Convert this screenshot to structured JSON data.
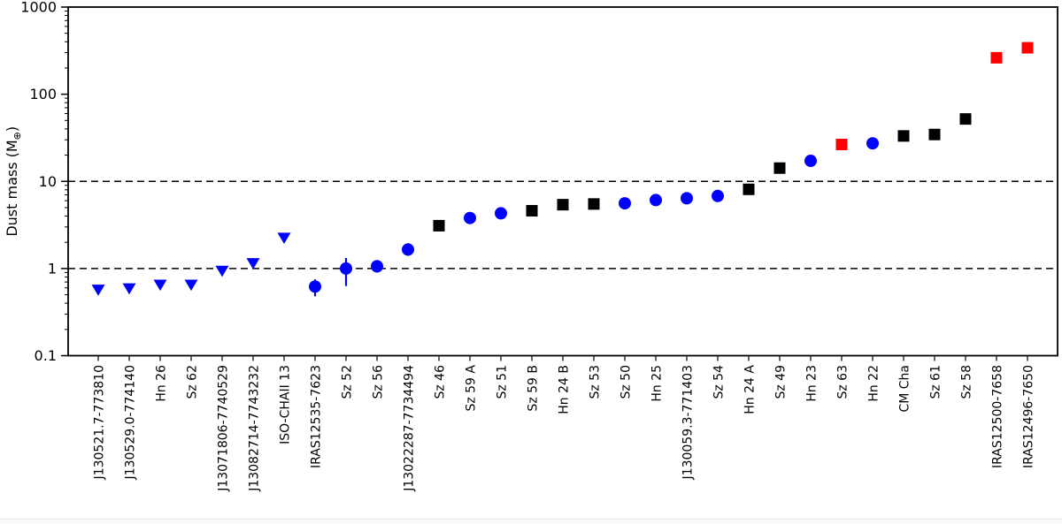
{
  "chart_data": {
    "type": "scatter",
    "title": "",
    "xlabel": "",
    "ylabel": {
      "prefix": "Dust mass (M",
      "subscript": "⊕",
      "suffix": ")"
    },
    "yscale": "log",
    "ylim": [
      0.1,
      1000
    ],
    "yticks": [
      1000,
      100,
      10,
      1,
      0.1
    ],
    "ytick_labels": [
      "1000",
      "100",
      "10",
      "1",
      "0.1"
    ],
    "dashed_hlines": [
      10,
      1
    ],
    "grid": false,
    "legend": null,
    "colors": {
      "blue": "#0000ff",
      "red": "#ff0000",
      "black": "#000000",
      "axis": "#000000"
    },
    "marker_meaning": {
      "triangle-down": "upper-limit",
      "circle": "detection",
      "square": "detection"
    },
    "points": [
      {
        "label": "J130521.7-773810",
        "value": 0.57,
        "marker": "triangle-down",
        "color": "blue"
      },
      {
        "label": "J130529.0-774140",
        "value": 0.59,
        "marker": "triangle-down",
        "color": "blue"
      },
      {
        "label": "Hn 26",
        "value": 0.65,
        "marker": "triangle-down",
        "color": "blue"
      },
      {
        "label": "Sz 62",
        "value": 0.65,
        "marker": "triangle-down",
        "color": "blue"
      },
      {
        "label": "J13071806-7740529",
        "value": 0.94,
        "marker": "triangle-down",
        "color": "blue"
      },
      {
        "label": "J13082714-7743232",
        "value": 1.15,
        "marker": "triangle-down",
        "color": "blue"
      },
      {
        "label": "ISO-CHAII 13",
        "value": 2.25,
        "marker": "triangle-down",
        "color": "blue"
      },
      {
        "label": "IRAS12535-7623",
        "value": 0.62,
        "marker": "circle",
        "color": "blue",
        "err": [
          0.48,
          0.75
        ]
      },
      {
        "label": "Sz 52",
        "value": 1.0,
        "marker": "circle",
        "color": "blue",
        "err": [
          0.63,
          1.32
        ]
      },
      {
        "label": "Sz 56",
        "value": 1.06,
        "marker": "circle",
        "color": "blue",
        "err": [
          0.9,
          1.25
        ]
      },
      {
        "label": "J13022287-7734494",
        "value": 1.65,
        "marker": "circle",
        "color": "blue",
        "err": [
          1.4,
          1.95
        ]
      },
      {
        "label": "Sz 46",
        "value": 3.1,
        "marker": "square",
        "color": "black"
      },
      {
        "label": "Sz 59 A",
        "value": 3.8,
        "marker": "circle",
        "color": "blue"
      },
      {
        "label": "Sz 51",
        "value": 4.3,
        "marker": "circle",
        "color": "blue"
      },
      {
        "label": "Sz 59 B",
        "value": 4.6,
        "marker": "square",
        "color": "black"
      },
      {
        "label": "Hn 24 B",
        "value": 5.4,
        "marker": "square",
        "color": "black"
      },
      {
        "label": "Sz 53",
        "value": 5.5,
        "marker": "square",
        "color": "black"
      },
      {
        "label": "Sz 50",
        "value": 5.6,
        "marker": "circle",
        "color": "blue"
      },
      {
        "label": "Hn 25",
        "value": 6.1,
        "marker": "circle",
        "color": "blue"
      },
      {
        "label": "J130059.3-771403",
        "value": 6.4,
        "marker": "circle",
        "color": "blue"
      },
      {
        "label": "Sz 54",
        "value": 6.8,
        "marker": "circle",
        "color": "blue"
      },
      {
        "label": "Hn 24 A",
        "value": 8.1,
        "marker": "square",
        "color": "black"
      },
      {
        "label": "Sz 49",
        "value": 14.2,
        "marker": "square",
        "color": "black"
      },
      {
        "label": "Hn 23",
        "value": 17.2,
        "marker": "circle",
        "color": "blue"
      },
      {
        "label": "Sz 63",
        "value": 26.5,
        "marker": "square",
        "color": "red"
      },
      {
        "label": "Hn 22",
        "value": 27.3,
        "marker": "circle",
        "color": "blue"
      },
      {
        "label": "CM Cha",
        "value": 33.2,
        "marker": "square",
        "color": "black"
      },
      {
        "label": "Sz 61",
        "value": 34.5,
        "marker": "square",
        "color": "black"
      },
      {
        "label": "Sz 58",
        "value": 52.0,
        "marker": "square",
        "color": "black"
      },
      {
        "label": "IRAS12500-7658",
        "value": 262,
        "marker": "square",
        "color": "red"
      },
      {
        "label": "IRAS12496-7650",
        "value": 341,
        "marker": "square",
        "color": "red"
      }
    ]
  }
}
